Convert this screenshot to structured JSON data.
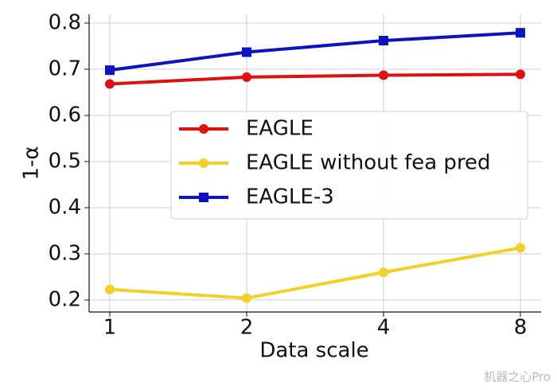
{
  "chart_data": {
    "type": "line",
    "x_label": "Data scale",
    "y_label": "1-α",
    "categories": [
      "1",
      "2",
      "4",
      "8"
    ],
    "series": [
      {
        "name": "EAGLE",
        "color": "#e01010",
        "marker": "circle",
        "values": [
          0.668,
          0.683,
          0.687,
          0.689
        ]
      },
      {
        "name": "EAGLE without fea pred",
        "color": "#f2d024",
        "marker": "circle",
        "values": [
          0.223,
          0.204,
          0.26,
          0.313
        ]
      },
      {
        "name": "EAGLE-3",
        "color": "#0a14c0",
        "marker": "square",
        "values": [
          0.698,
          0.737,
          0.762,
          0.779
        ]
      }
    ],
    "ylim": [
      0.174,
      0.819
    ],
    "yticks": [
      0.2,
      0.3,
      0.4,
      0.5,
      0.6,
      0.7,
      0.8
    ],
    "grid": true,
    "legend": "center-right",
    "watermark": "机器之心Pro"
  }
}
